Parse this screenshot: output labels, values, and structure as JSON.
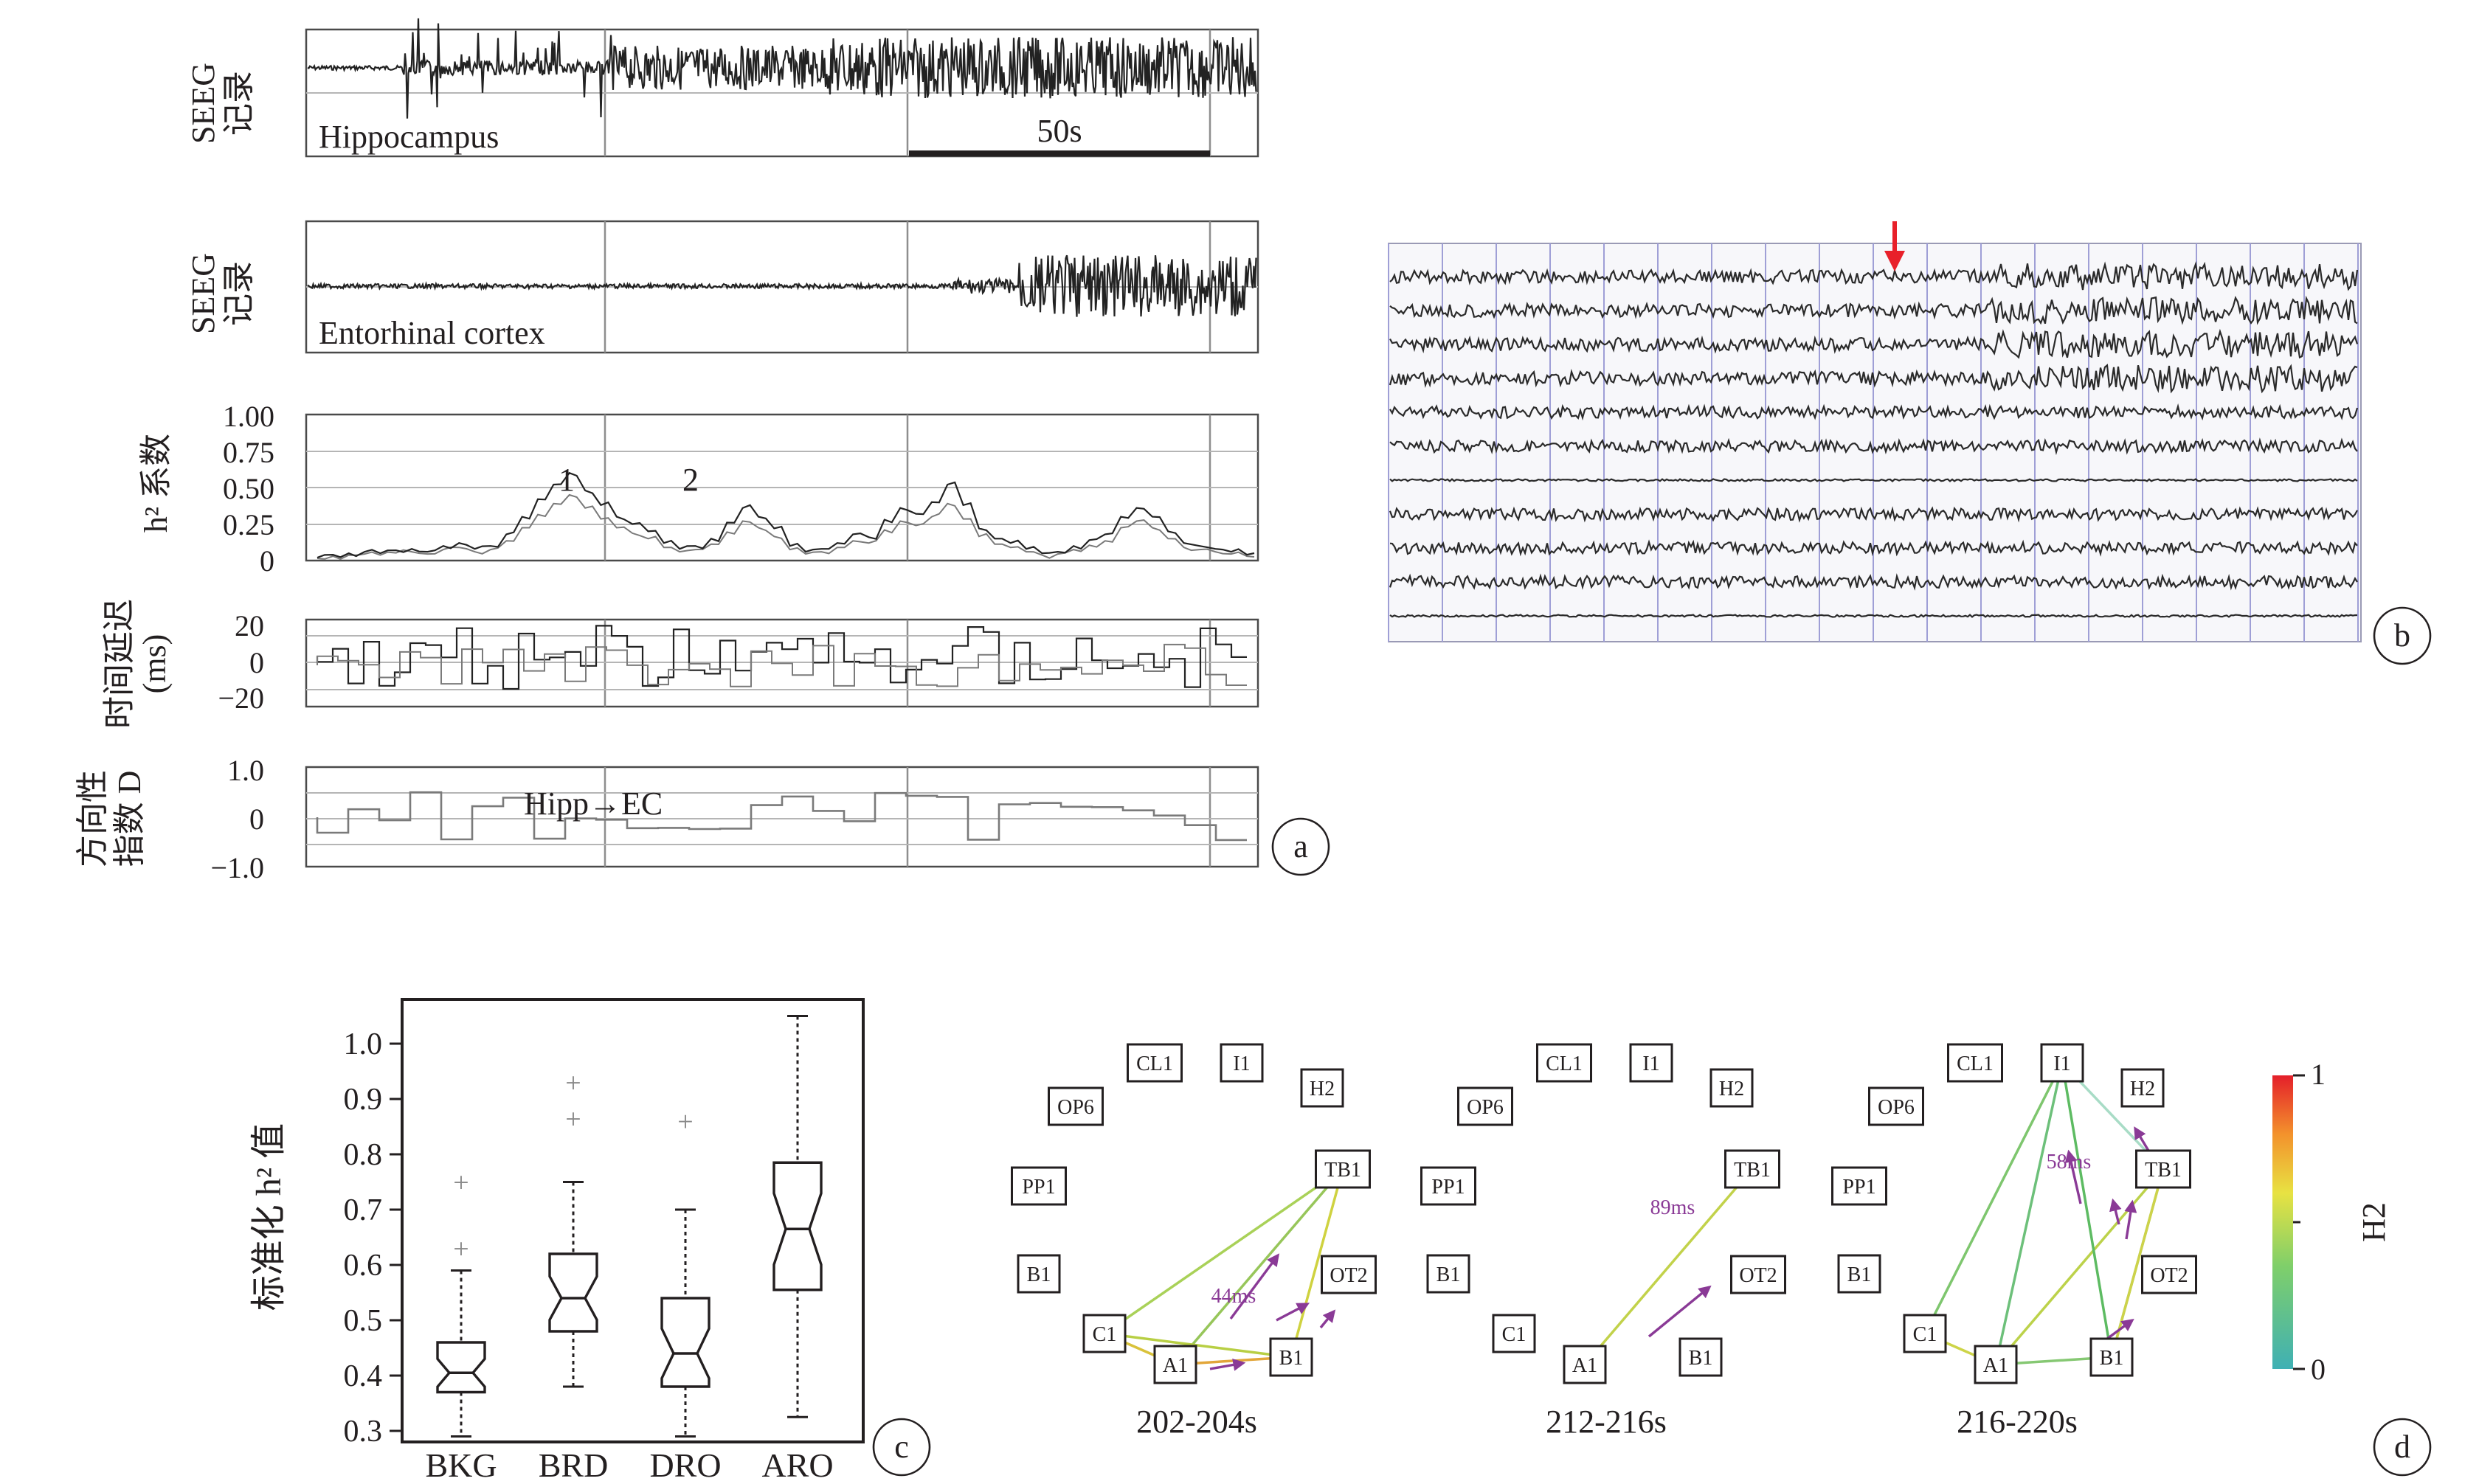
{
  "panel_a": {
    "row1_ylabel": [
      "SEEG",
      "记录"
    ],
    "row1_region": "Hippocampus",
    "scale_bar_label": "50s",
    "row2_ylabel": [
      "SEEG",
      "记录"
    ],
    "row2_region": "Entorhinal cortex",
    "row3_ylabel": "h² 系数",
    "row3_ticks": [
      "1.00",
      "0.75",
      "0.50",
      "0.25",
      "0"
    ],
    "row3_markers": [
      "1",
      "2"
    ],
    "row4_ylabel": [
      "时间延迟",
      "(ms)"
    ],
    "row4_ticks": [
      "20",
      "0",
      "−20"
    ],
    "row5_ylabel": [
      "方向性",
      "指数 D"
    ],
    "row5_ticks": [
      "1.0",
      "0",
      "−1.0"
    ],
    "row5_annotation": "Hipp→EC",
    "letter": "a"
  },
  "panel_b": {
    "letter": "b"
  },
  "panel_c": {
    "letter": "c",
    "ylabel": "标准化 h² 值",
    "yticks": [
      "1.0",
      "0.9",
      "0.8",
      "0.7",
      "0.6",
      "0.5",
      "0.4",
      "0.3"
    ]
  },
  "panel_d": {
    "letter": "d",
    "windows": [
      "202-204s",
      "212-216s",
      "216-220s"
    ],
    "nodes": [
      "CL1",
      "I1",
      "OP6",
      "H2",
      "PP1",
      "TB1",
      "B1",
      "C1",
      "OT2",
      "A1",
      "B1"
    ],
    "delays": [
      "44ms",
      "89ms",
      "58ms"
    ],
    "colorbar_label": "H2",
    "colorbar_ticks": [
      "1",
      "0"
    ],
    "colors": {
      "arrow": "#8a3a96"
    }
  },
  "chart_data": [
    {
      "type": "box",
      "categories": [
        "BKG",
        "BRD",
        "DRO",
        "ARO"
      ],
      "ylabel": "标准化 h² 值",
      "ylim": [
        0.28,
        1.08
      ],
      "notched": true,
      "series": [
        {
          "category": "BKG",
          "whisker_low": 0.29,
          "q1": 0.37,
          "median": 0.405,
          "q3": 0.46,
          "whisker_high": 0.59,
          "outliers": [
            0.63,
            0.75
          ]
        },
        {
          "category": "BRD",
          "whisker_low": 0.38,
          "q1": 0.48,
          "median": 0.54,
          "q3": 0.62,
          "whisker_high": 0.75,
          "outliers": [
            0.865,
            0.93
          ]
        },
        {
          "category": "DRO",
          "whisker_low": 0.29,
          "q1": 0.38,
          "median": 0.44,
          "q3": 0.54,
          "whisker_high": 0.7,
          "outliers": [
            0.86
          ]
        },
        {
          "category": "ARO",
          "whisker_low": 0.325,
          "q1": 0.555,
          "median": 0.665,
          "q3": 0.785,
          "whisker_high": 1.05,
          "outliers": []
        }
      ]
    },
    {
      "type": "line",
      "title": "",
      "ylabel": "h² 系数",
      "ylim": [
        0,
        1
      ],
      "series": [
        {
          "values": [
            0.02,
            0.04,
            0.05,
            0.06,
            0.05,
            0.07,
            0.08,
            0.06,
            0.1,
            0.12,
            0.08,
            0.1,
            0.18,
            0.3,
            0.42,
            0.52,
            0.6,
            0.48,
            0.38,
            0.3,
            0.25,
            0.2,
            0.12,
            0.08,
            0.1,
            0.15,
            0.26,
            0.36,
            0.3,
            0.22,
            0.1,
            0.06,
            0.08,
            0.12,
            0.18,
            0.16,
            0.28,
            0.36,
            0.32,
            0.4,
            0.52,
            0.38,
            0.22,
            0.15,
            0.12,
            0.08,
            0.05,
            0.06,
            0.1,
            0.14,
            0.18,
            0.3,
            0.36,
            0.3,
            0.2,
            0.12,
            0.1,
            0.08,
            0.06,
            0.04
          ]
        }
      ]
    }
  ]
}
